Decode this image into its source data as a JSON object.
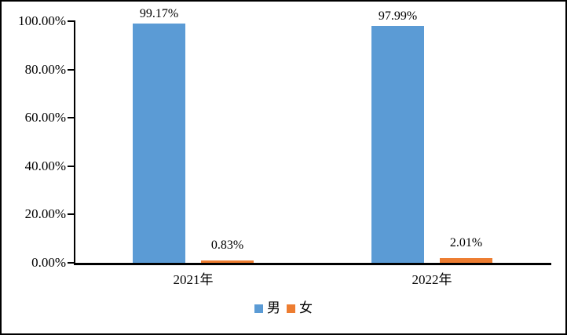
{
  "chart_data": {
    "type": "bar",
    "categories": [
      "2021年",
      "2022年"
    ],
    "series": [
      {
        "name": "男",
        "key": "male",
        "color": "#5B9BD5",
        "values": [
          99.17,
          97.99
        ],
        "labels": [
          "99.17%",
          "97.99%"
        ]
      },
      {
        "name": "女",
        "key": "female",
        "color": "#ED7D31",
        "values": [
          0.83,
          2.01
        ],
        "labels": [
          "0.83%",
          "2.01%"
        ]
      }
    ],
    "y_axis": {
      "min": 0,
      "max": 100,
      "step": 20,
      "tick_labels": [
        "0.00%",
        "20.00%",
        "40.00%",
        "60.00%",
        "80.00%",
        "100.00%"
      ]
    },
    "x_axis": {
      "tick_labels": [
        "2021年",
        "2022年"
      ]
    },
    "legend": {
      "position": "bottom",
      "entries": [
        "男",
        "女"
      ]
    },
    "grid": false,
    "title": "",
    "xlabel": "",
    "ylabel": ""
  },
  "colors": {
    "series_male": "#5B9BD5",
    "series_female": "#ED7D31",
    "axis": "#000000",
    "text": "#000000",
    "border": "#000000",
    "background": "#FFFFFF"
  }
}
